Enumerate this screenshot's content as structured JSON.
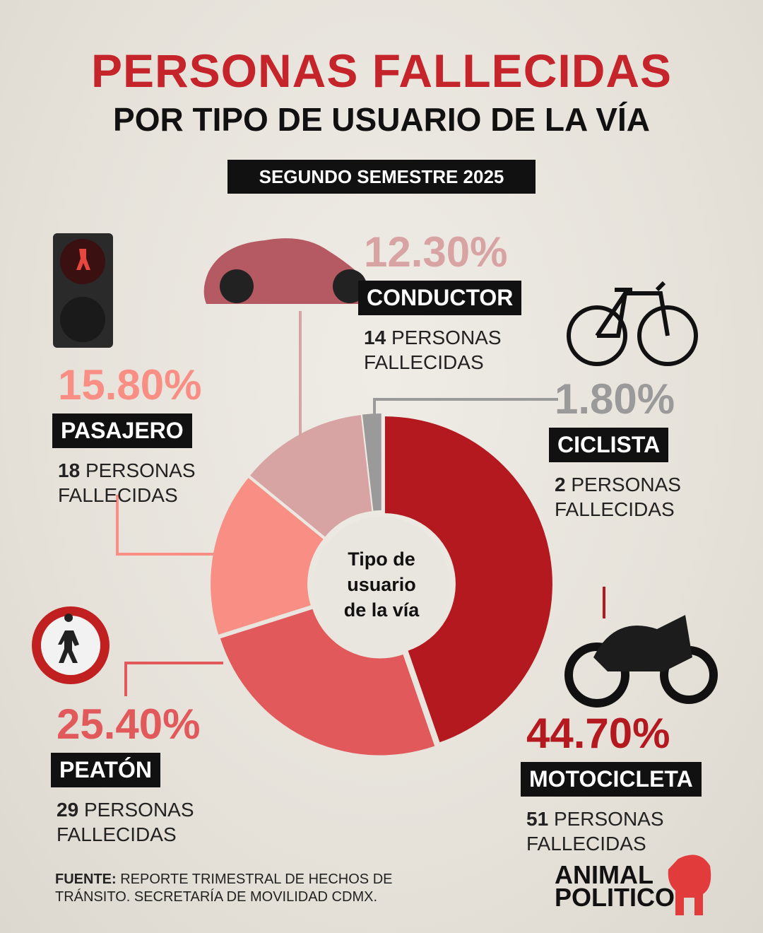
{
  "chart_data": {
    "type": "donut",
    "title": "PERSONAS FALLECIDAS",
    "subtitle": "POR TIPO DE USUARIO DE LA VÍA",
    "period": "SEGUNDO SEMESTRE 2025",
    "center_label": "Tipo de usuario de la vía",
    "categories": [
      "MOTOCICLETA",
      "PEATÓN",
      "PASAJERO",
      "CONDUCTOR",
      "CICLISTA"
    ],
    "values": [
      44.7,
      25.4,
      15.8,
      12.3,
      1.8
    ],
    "value_labels": [
      "44.70%",
      "25.40%",
      "15.80%",
      "12.30%",
      "1.80%"
    ],
    "counts": [
      51,
      29,
      18,
      14,
      2
    ],
    "count_unit": "PERSONAS FALLECIDAS",
    "colors": [
      "#b3191f",
      "#e2595b",
      "#f88e84",
      "#d8a4a3",
      "#9a9a9a"
    ],
    "source_label": "FUENTE:",
    "source": "REPORTE TRIMESTRAL DE HECHOS DE TRÁNSITO. SECRETARÍA DE MOVILIDAD CDMX.",
    "logo": [
      "ANIMAL",
      "POLITICO"
    ]
  }
}
